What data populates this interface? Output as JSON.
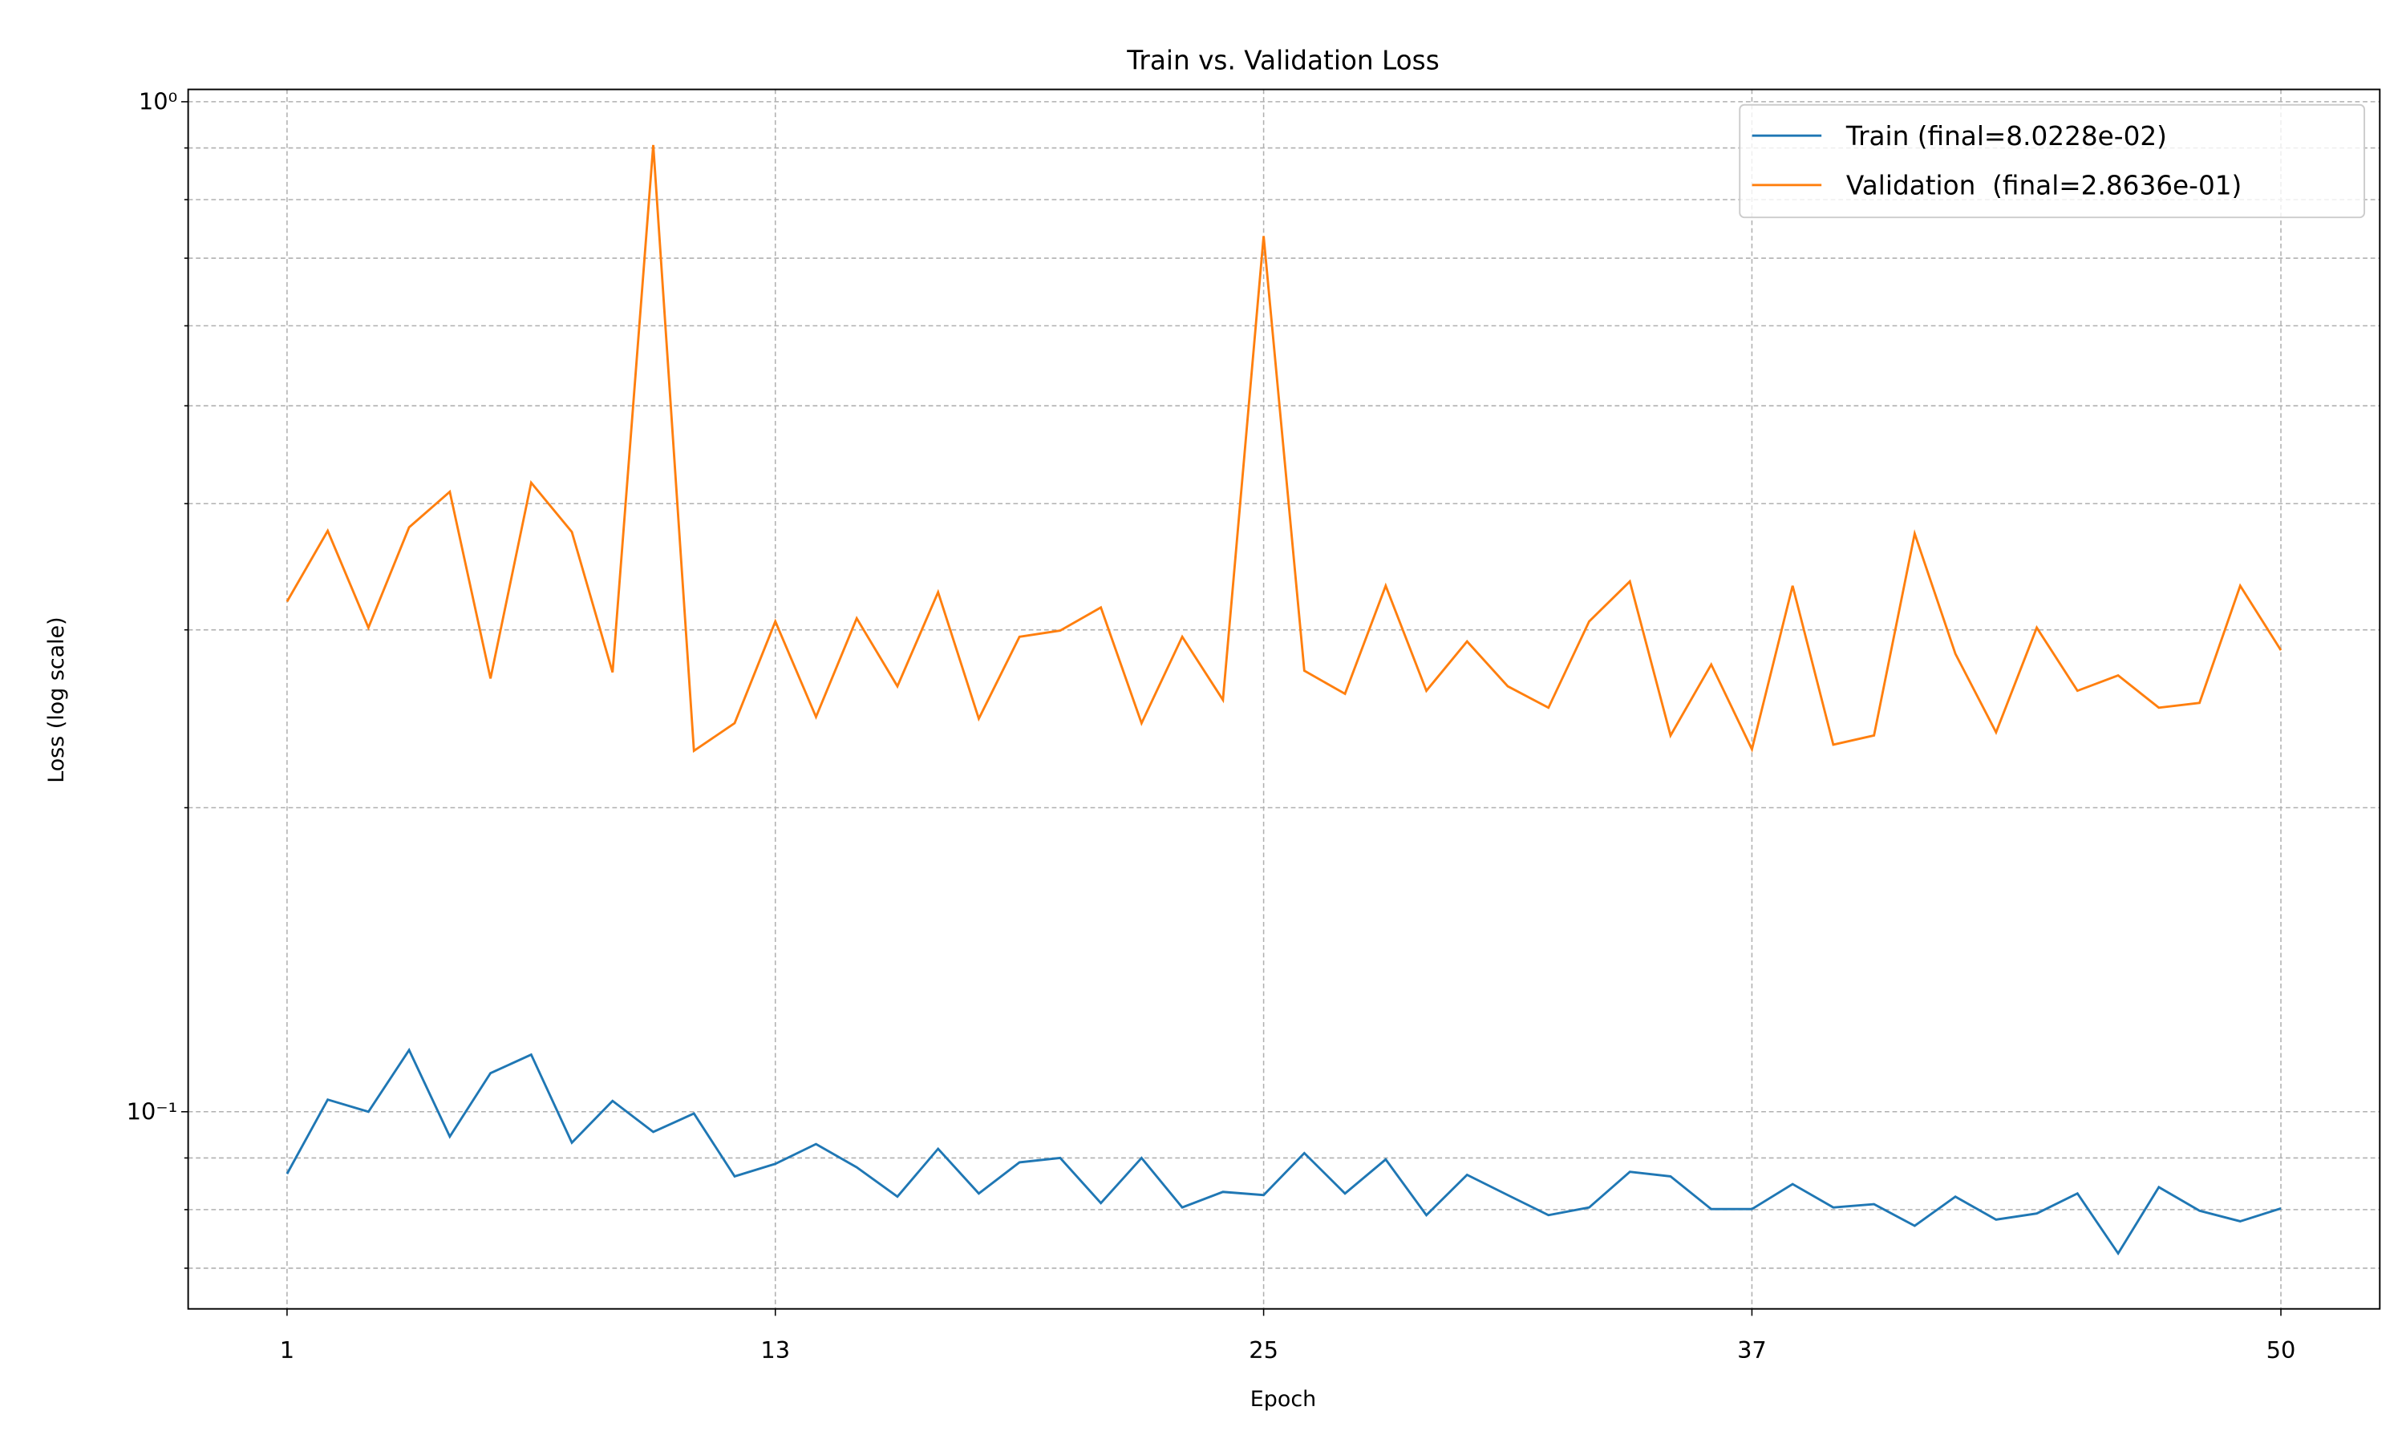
{
  "chart_data": {
    "type": "line",
    "title": "Train vs. Validation Loss",
    "xlabel": "Epoch",
    "ylabel": "Loss (log scale)",
    "x": [
      1,
      2,
      3,
      4,
      5,
      6,
      7,
      8,
      9,
      10,
      11,
      12,
      13,
      14,
      15,
      16,
      17,
      18,
      19,
      20,
      21,
      22,
      23,
      24,
      25,
      26,
      27,
      28,
      29,
      30,
      31,
      32,
      33,
      34,
      35,
      36,
      37,
      38,
      39,
      40,
      41,
      42,
      43,
      44,
      45,
      46,
      47,
      48,
      49,
      50
    ],
    "series": [
      {
        "name": "Train (final=8.0228e-02)",
        "color": "#1f77b4",
        "values": [
          0.0868,
          0.1028,
          0.1,
          0.1151,
          0.0945,
          0.1092,
          0.1139,
          0.0932,
          0.1025,
          0.0955,
          0.0996,
          0.0863,
          0.0888,
          0.0929,
          0.0881,
          0.0824,
          0.0919,
          0.083,
          0.0891,
          0.09,
          0.0812,
          0.09,
          0.0804,
          0.0833,
          0.0827,
          0.091,
          0.083,
          0.0897,
          0.079,
          0.0866,
          0.0827,
          0.079,
          0.0804,
          0.0872,
          0.0863,
          0.0801,
          0.0801,
          0.0848,
          0.0804,
          0.081,
          0.0771,
          0.0824,
          0.0782,
          0.0793,
          0.083,
          0.0724,
          0.0842,
          0.0798,
          0.0779,
          0.080228
        ]
      },
      {
        "name": "Validation  (final=2.8636e-01)",
        "color": "#ff7f0e",
        "values": [
          0.32,
          0.376,
          0.3015,
          0.379,
          0.411,
          0.2685,
          0.4196,
          0.375,
          0.2723,
          0.906,
          0.2277,
          0.2425,
          0.3058,
          0.246,
          0.308,
          0.2638,
          0.3269,
          0.245,
          0.2953,
          0.2995,
          0.3157,
          0.2425,
          0.2953,
          0.2557,
          0.7362,
          0.2733,
          0.2593,
          0.3317,
          0.2611,
          0.2922,
          0.2638,
          0.2512,
          0.3058,
          0.335,
          0.2358,
          0.2772,
          0.2285,
          0.3317,
          0.2309,
          0.2358,
          0.3736,
          0.2841,
          0.2375,
          0.3015,
          0.2611,
          0.2704,
          0.2512,
          0.254,
          0.3317,
          0.28636
        ]
      }
    ],
    "xlim": [
      -1.43,
      52.43
    ],
    "xticks": [
      1,
      13,
      25,
      37,
      50
    ],
    "ylim": [
      0.0638,
      1.0285
    ],
    "yscale": "log",
    "yticks": [
      {
        "value": 0.1,
        "label": "10⁻¹"
      },
      {
        "value": 1,
        "label": "10⁰"
      }
    ],
    "yminorticks": [
      0.07,
      0.08,
      0.09,
      0.2,
      0.3,
      0.4,
      0.5,
      0.6,
      0.7,
      0.8,
      0.9
    ],
    "grid": true,
    "legend": "upper right"
  }
}
